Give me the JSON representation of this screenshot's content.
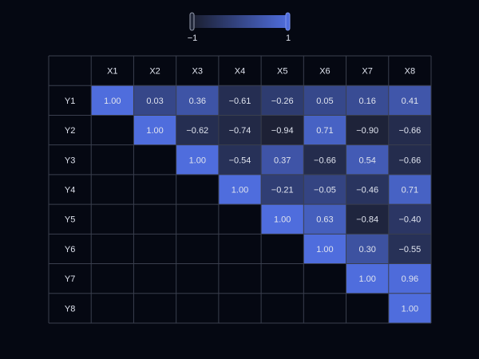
{
  "chart_data": {
    "type": "heatmap",
    "title": "",
    "xlabel": "",
    "ylabel": "",
    "x_categories": [
      "X1",
      "X2",
      "X3",
      "X4",
      "X5",
      "X6",
      "X7",
      "X8"
    ],
    "y_categories": [
      "Y1",
      "Y2",
      "Y3",
      "Y4",
      "Y5",
      "Y6",
      "Y7",
      "Y8"
    ],
    "values": [
      [
        1.0,
        0.03,
        0.36,
        -0.61,
        -0.26,
        0.05,
        0.16,
        0.41
      ],
      [
        null,
        1.0,
        -0.62,
        -0.74,
        -0.94,
        0.71,
        -0.9,
        -0.66
      ],
      [
        null,
        null,
        1.0,
        -0.54,
        0.37,
        -0.66,
        0.54,
        -0.66
      ],
      [
        null,
        null,
        null,
        1.0,
        -0.21,
        -0.05,
        -0.46,
        0.71
      ],
      [
        null,
        null,
        null,
        null,
        1.0,
        0.63,
        -0.84,
        -0.4
      ],
      [
        null,
        null,
        null,
        null,
        null,
        1.0,
        0.3,
        -0.55
      ],
      [
        null,
        null,
        null,
        null,
        null,
        null,
        1.0,
        0.96
      ],
      [
        null,
        null,
        null,
        null,
        null,
        null,
        null,
        1.0
      ]
    ],
    "value_range": [
      -1,
      1
    ],
    "legend": {
      "position": "top-center",
      "min_label": "−1",
      "max_label": "1"
    },
    "colors": {
      "low": "#1b1f30",
      "high": "#4f6ddd",
      "background": "#050812",
      "grid": "#3a3f4e",
      "text": "#dfe3ee"
    }
  }
}
